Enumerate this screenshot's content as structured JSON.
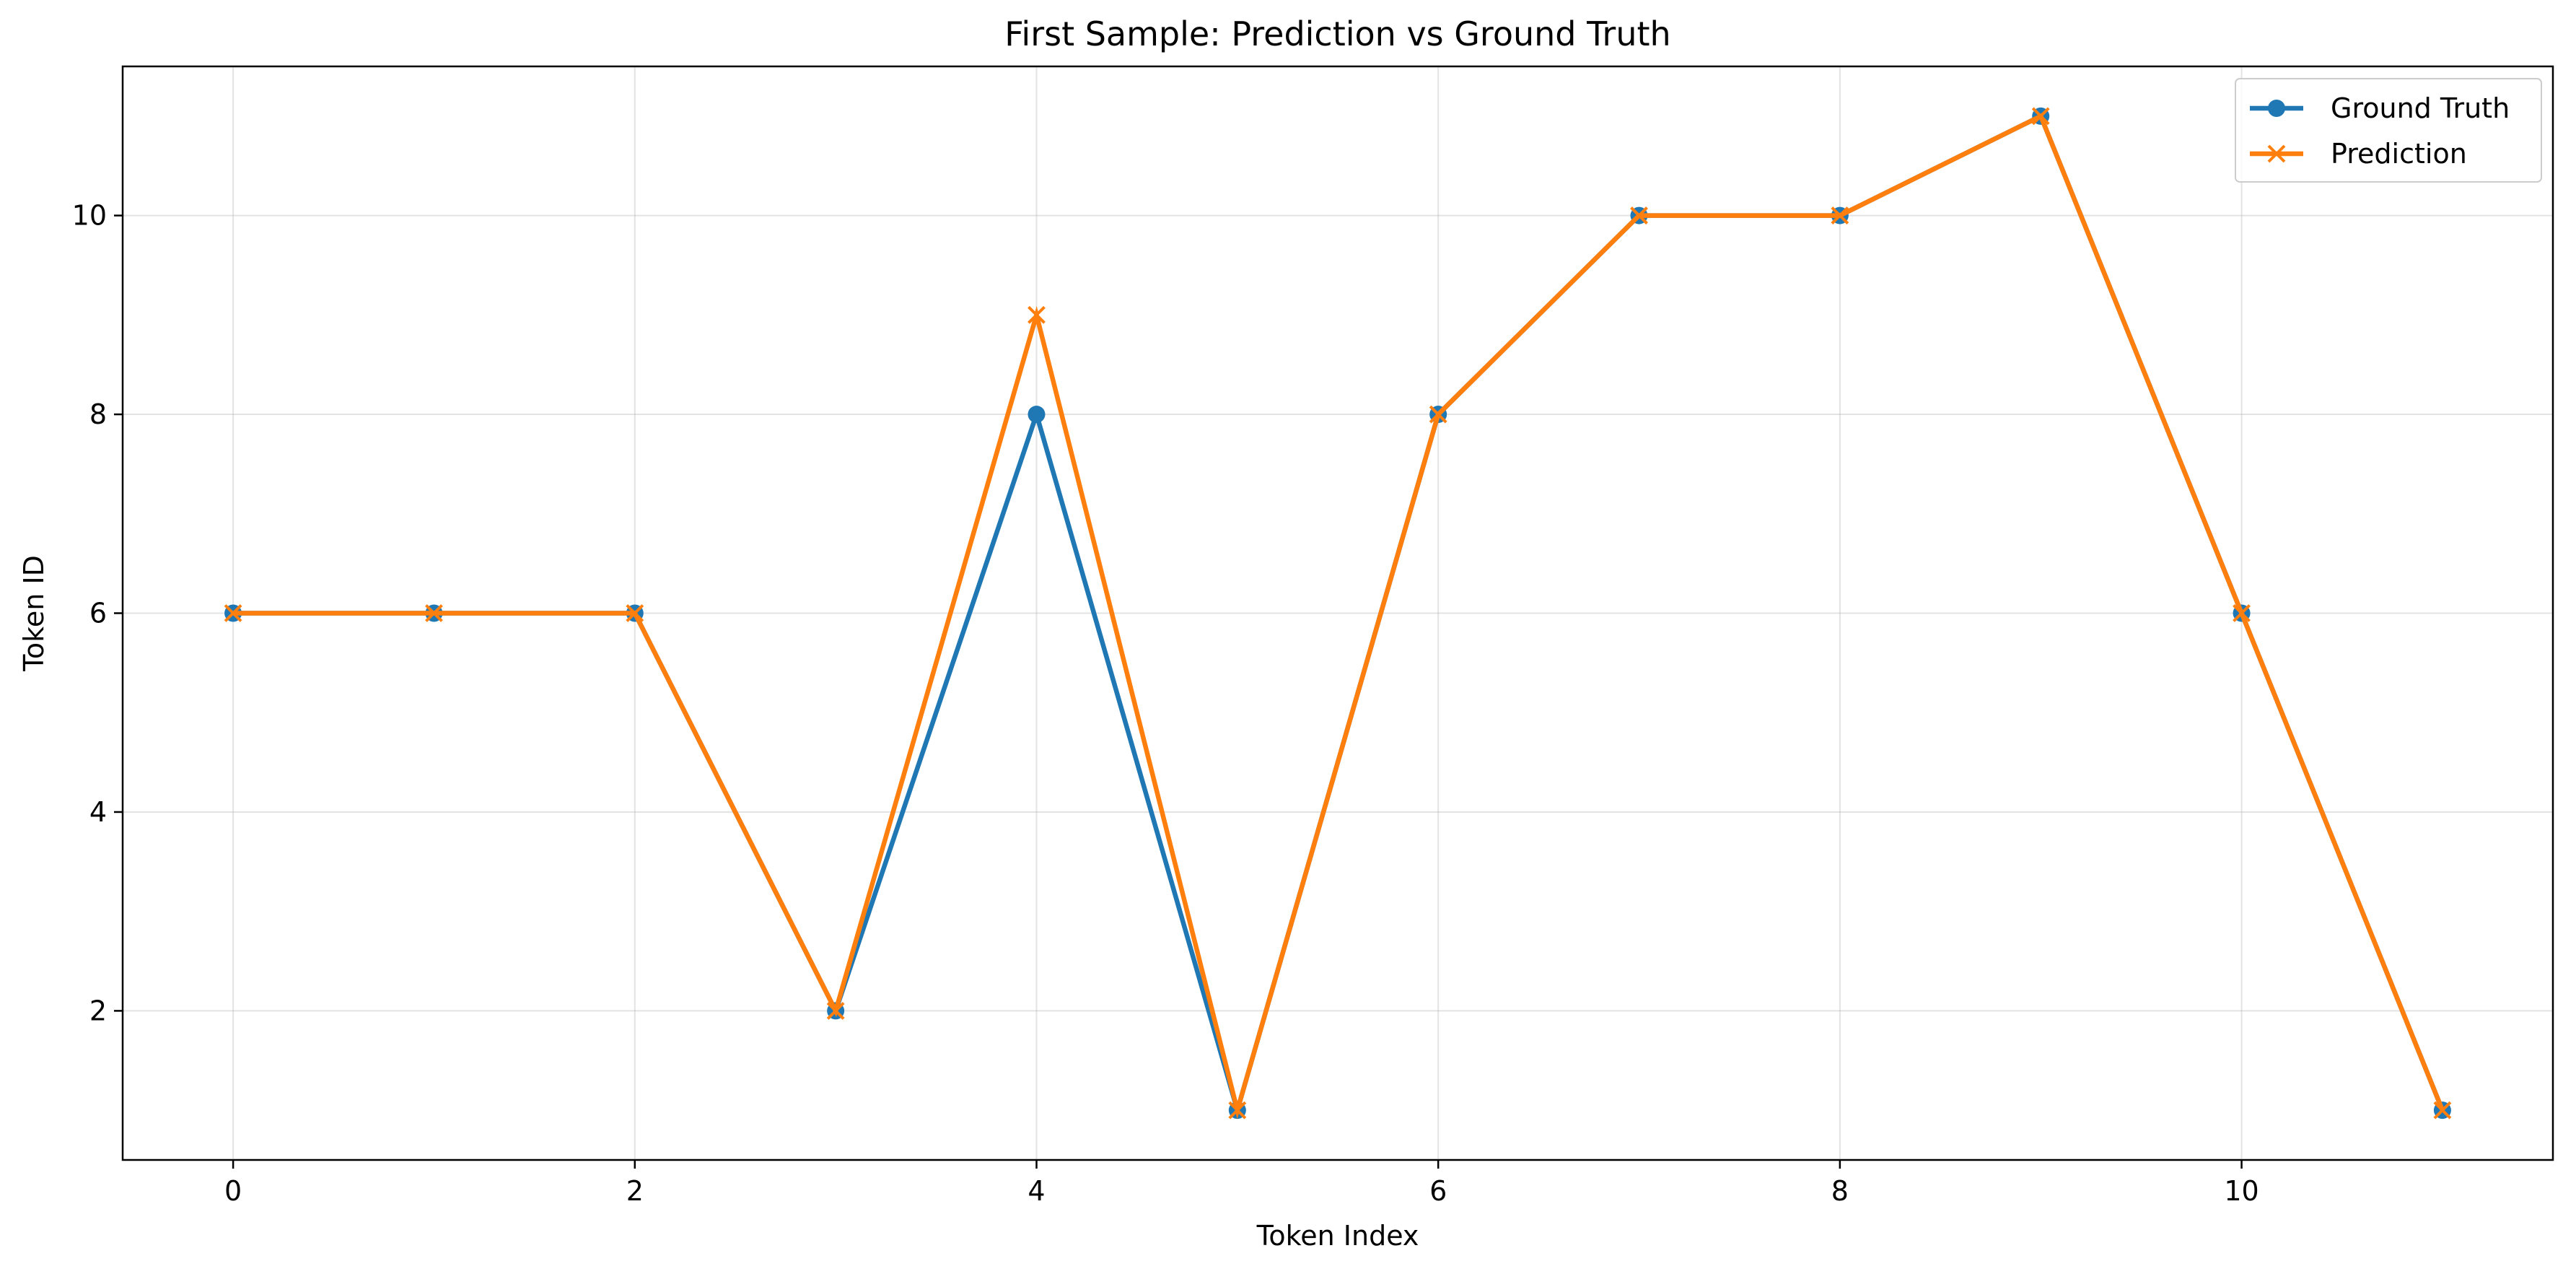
{
  "chart_data": {
    "type": "line",
    "title": "First Sample: Prediction vs Ground Truth",
    "xlabel": "Token Index",
    "ylabel": "Token ID",
    "x": [
      0,
      1,
      2,
      3,
      4,
      5,
      6,
      7,
      8,
      9,
      10,
      11
    ],
    "xlim": [
      -0.55,
      11.55
    ],
    "ylim": [
      0.5,
      11.5
    ],
    "xticks": [
      0,
      2,
      4,
      6,
      8,
      10
    ],
    "yticks": [
      2,
      4,
      6,
      8,
      10
    ],
    "grid": true,
    "legend_position": "top-right",
    "series": [
      {
        "name": "Ground Truth",
        "marker": "circle",
        "color": "#1f77b4",
        "values": [
          6,
          6,
          6,
          2,
          8,
          1,
          8,
          10,
          10,
          11,
          6,
          1
        ]
      },
      {
        "name": "Prediction",
        "marker": "x",
        "color": "#ff7f0e",
        "values": [
          6,
          6,
          6,
          2,
          9,
          1,
          8,
          10,
          10,
          11,
          6,
          1
        ]
      }
    ]
  }
}
